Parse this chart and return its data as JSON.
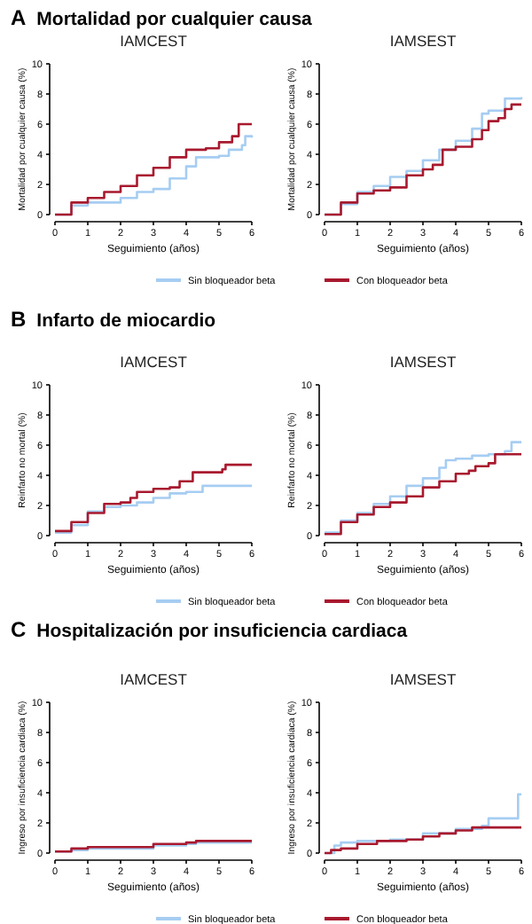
{
  "chart_data": [
    {
      "type": "step",
      "title": "IAMCEST",
      "annotations": [
        "A",
        "Mortalidad por cualquier causa"
      ],
      "xlabel": "Seguimiento (años)",
      "ylabel": "Mortalidad por cualquier causa (%)",
      "xlim": [
        0,
        6
      ],
      "xticks": [
        0,
        1,
        2,
        3,
        4,
        5,
        6
      ],
      "ylim": [
        0,
        10
      ],
      "yticks": [
        0,
        2,
        4,
        6,
        8,
        10
      ],
      "legend": "bottom",
      "series": [
        {
          "name": "Sin bloqueador beta",
          "color": "#a6cdf2",
          "x": [
            0,
            0.5,
            1,
            2,
            2.5,
            3,
            3.5,
            4,
            4.3,
            5,
            5.3,
            5.7,
            5.8,
            6
          ],
          "values": [
            0,
            0.6,
            0.8,
            1.1,
            1.5,
            1.7,
            2.4,
            3.2,
            3.8,
            3.9,
            4.3,
            4.6,
            5.2,
            5.1
          ]
        },
        {
          "name": "Con bloqueador beta",
          "color": "#a8192e",
          "x": [
            0,
            0.5,
            1,
            1.5,
            2,
            2.5,
            3,
            3.5,
            4,
            4.6,
            5,
            5.4,
            5.6,
            6
          ],
          "values": [
            0,
            0.8,
            1.1,
            1.5,
            1.9,
            2.6,
            3.1,
            3.8,
            4.3,
            4.4,
            4.8,
            5.2,
            6.0,
            6.0
          ]
        }
      ]
    },
    {
      "type": "step",
      "title": "IAMSEST",
      "xlabel": "Seguimiento (años)",
      "ylabel": "Mortalidad por cualquier causa (%)",
      "xlim": [
        0,
        6
      ],
      "xticks": [
        0,
        1,
        2,
        3,
        4,
        5,
        6
      ],
      "ylim": [
        0,
        10
      ],
      "yticks": [
        0,
        2,
        4,
        6,
        8,
        10
      ],
      "series": [
        {
          "color": "#a6cdf2",
          "x": [
            0,
            0.5,
            1,
            1.5,
            2,
            2.5,
            3,
            3.5,
            4,
            4.5,
            4.8,
            5,
            5.5,
            6
          ],
          "values": [
            0,
            0.7,
            1.5,
            1.9,
            2.5,
            2.9,
            3.6,
            4.3,
            4.9,
            5.7,
            6.7,
            6.9,
            7.7,
            7.8
          ]
        },
        {
          "color": "#a8192e",
          "x": [
            0,
            0.5,
            1,
            1.5,
            2,
            2.5,
            3,
            3.3,
            3.6,
            4,
            4.5,
            4.8,
            5,
            5.3,
            5.5,
            5.7,
            6
          ],
          "values": [
            0,
            0.8,
            1.4,
            1.6,
            1.8,
            2.6,
            3.0,
            3.3,
            4.3,
            4.5,
            5.0,
            5.6,
            6.2,
            6.4,
            7.0,
            7.3,
            7.3
          ]
        }
      ]
    },
    {
      "type": "step",
      "title": "IAMCEST",
      "annotations": [
        "B",
        "Infarto de miocardio"
      ],
      "xlabel": "Seguimiento (años)",
      "ylabel": "Reinfarto no mortal (%)",
      "xlim": [
        0,
        6
      ],
      "xticks": [
        0,
        1,
        2,
        3,
        4,
        5,
        6
      ],
      "ylim": [
        0,
        10
      ],
      "yticks": [
        0,
        2,
        4,
        6,
        8,
        10
      ],
      "legend": "bottom",
      "series": [
        {
          "name": "Sin bloqueador beta",
          "color": "#a6cdf2",
          "x": [
            0,
            0.5,
            1,
            1.5,
            2,
            2.5,
            3,
            3.5,
            4,
            4.5,
            6
          ],
          "values": [
            0.2,
            0.7,
            1.6,
            1.9,
            2.0,
            2.2,
            2.5,
            2.8,
            2.9,
            3.3,
            3.3
          ]
        },
        {
          "name": "Con bloqueador beta",
          "color": "#a8192e",
          "x": [
            0,
            0.5,
            1,
            1.5,
            2,
            2.3,
            2.5,
            3,
            3.5,
            3.8,
            4.2,
            5.1,
            5.2,
            6
          ],
          "values": [
            0.3,
            0.9,
            1.5,
            2.1,
            2.2,
            2.5,
            2.9,
            3.1,
            3.2,
            3.6,
            4.2,
            4.4,
            4.7,
            4.7
          ]
        }
      ]
    },
    {
      "type": "step",
      "title": "IAMSEST",
      "xlabel": "Seguimiento (años)",
      "ylabel": "Reinfarto no mortal (%)",
      "xlim": [
        0,
        6
      ],
      "xticks": [
        0,
        1,
        2,
        3,
        4,
        5,
        6
      ],
      "ylim": [
        0,
        10
      ],
      "yticks": [
        0,
        2,
        4,
        6,
        8,
        10
      ],
      "series": [
        {
          "color": "#a6cdf2",
          "x": [
            0,
            0.5,
            1,
            1.5,
            2,
            2.5,
            3,
            3.5,
            3.7,
            4,
            4.5,
            5,
            5.5,
            5.7,
            6
          ],
          "values": [
            0.2,
            1.0,
            1.5,
            2.1,
            2.6,
            3.3,
            3.8,
            4.5,
            5.0,
            5.1,
            5.3,
            5.4,
            5.6,
            6.2,
            6.2
          ]
        },
        {
          "color": "#a8192e",
          "x": [
            0,
            0.5,
            1,
            1.5,
            2,
            2.5,
            3,
            3.5,
            4,
            4.4,
            4.6,
            5,
            5.2,
            6
          ],
          "values": [
            0.1,
            0.9,
            1.4,
            1.9,
            2.2,
            2.6,
            3.2,
            3.6,
            4.1,
            4.3,
            4.6,
            4.8,
            5.4,
            5.4
          ]
        }
      ]
    },
    {
      "type": "step",
      "title": "IAMCEST",
      "annotations": [
        "C",
        "Hospitalización por insuficiencia cardiaca"
      ],
      "xlabel": "Seguimiento (años)",
      "ylabel": "Ingreso por insuficiencia cardiaca (%)",
      "xlim": [
        0,
        6
      ],
      "xticks": [
        0,
        1,
        2,
        3,
        4,
        5,
        6
      ],
      "ylim": [
        0,
        10
      ],
      "yticks": [
        0,
        2,
        4,
        6,
        8,
        10
      ],
      "legend": "bottom",
      "series": [
        {
          "name": "Sin bloqueador beta",
          "color": "#a6cdf2",
          "x": [
            0,
            0.5,
            1,
            2,
            3,
            4,
            4.3,
            6
          ],
          "values": [
            0.1,
            0.2,
            0.3,
            0.3,
            0.5,
            0.6,
            0.7,
            0.7
          ]
        },
        {
          "name": "Con bloqueador beta",
          "color": "#a8192e",
          "x": [
            0,
            0.5,
            1,
            2,
            3,
            4,
            4.3,
            6
          ],
          "values": [
            0.1,
            0.3,
            0.4,
            0.4,
            0.6,
            0.7,
            0.8,
            0.8
          ]
        }
      ]
    },
    {
      "type": "step",
      "title": "IAMSEST",
      "xlabel": "Seguimiento (años)",
      "ylabel": "Ingreso por insuficiencia cardiaca (%)",
      "xlim": [
        0,
        6
      ],
      "xticks": [
        0,
        1,
        2,
        3,
        4,
        5,
        6
      ],
      "ylim": [
        0,
        10
      ],
      "yticks": [
        0,
        2,
        4,
        6,
        8,
        10
      ],
      "series": [
        {
          "color": "#a6cdf2",
          "x": [
            0,
            0.3,
            0.5,
            1,
            2,
            3,
            4,
            4.8,
            5,
            5.8,
            5.9,
            6
          ],
          "values": [
            0,
            0.5,
            0.7,
            0.8,
            0.9,
            1.3,
            1.6,
            1.8,
            2.3,
            2.3,
            3.9,
            3.9
          ]
        },
        {
          "color": "#a8192e",
          "x": [
            0,
            0.2,
            0.5,
            1,
            1.6,
            2,
            2.5,
            3,
            3.5,
            4,
            4.5,
            6
          ],
          "values": [
            0,
            0.2,
            0.3,
            0.6,
            0.8,
            0.8,
            0.9,
            1.1,
            1.3,
            1.5,
            1.7,
            1.7
          ]
        }
      ]
    }
  ]
}
